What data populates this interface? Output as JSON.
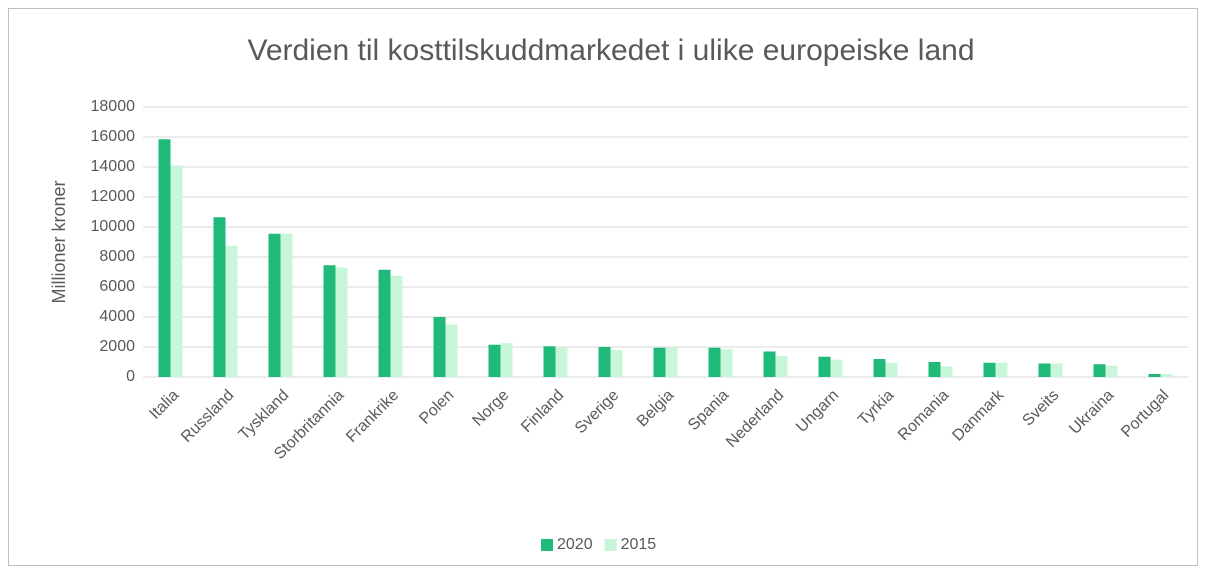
{
  "chart_data": {
    "type": "bar",
    "title": "Verdien til kosttilskuddmarkedet i ulike europeiske land",
    "y_label": "Millioner kroner",
    "categories": [
      "Italia",
      "Russland",
      "Tyskland",
      "Storbritannia",
      "Frankrike",
      "Polen",
      "Norge",
      "Finland",
      "Sverige",
      "Belgia",
      "Spania",
      "Nederland",
      "Ungarn",
      "Tyrkia",
      "Romania",
      "Danmark",
      "Sveits",
      "Ukraina",
      "Portugal"
    ],
    "series": [
      {
        "name": "2020",
        "color": "#1fba79",
        "values": [
          15850,
          10650,
          9550,
          7450,
          7150,
          4000,
          2150,
          2050,
          2000,
          1950,
          1950,
          1700,
          1350,
          1200,
          1000,
          950,
          900,
          850,
          200
        ]
      },
      {
        "name": "2015",
        "color": "#c8f6d8",
        "values": [
          14100,
          8750,
          9550,
          7300,
          6750,
          3500,
          2250,
          1950,
          1800,
          1950,
          1850,
          1400,
          1150,
          950,
          700,
          950,
          900,
          750,
          200
        ]
      }
    ],
    "ylim": [
      0,
      18000
    ],
    "yticks": [
      0,
      2000,
      4000,
      6000,
      8000,
      10000,
      12000,
      14000,
      16000,
      18000
    ],
    "grid": true,
    "legend": "bottom"
  }
}
